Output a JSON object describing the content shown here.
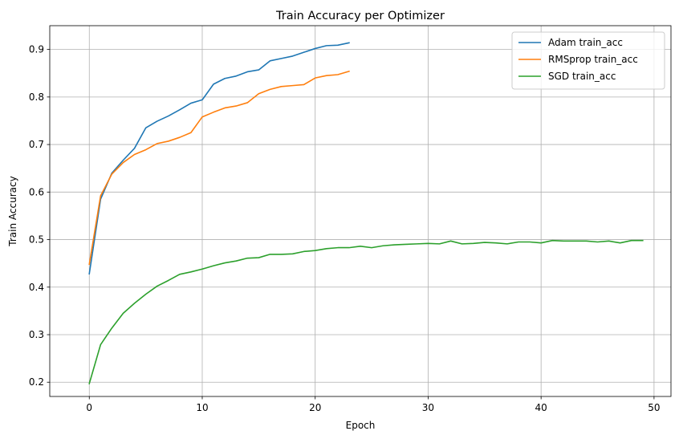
{
  "chart_data": {
    "type": "line",
    "title": "Train Accuracy per Optimizer",
    "xlabel": "Epoch",
    "ylabel": "Train Accuracy",
    "xlim": [
      -3.5,
      51.5
    ],
    "ylim": [
      0.17,
      0.95
    ],
    "xticks": [
      0,
      10,
      20,
      30,
      40,
      50
    ],
    "yticks": [
      0.2,
      0.3,
      0.4,
      0.5,
      0.6,
      0.7,
      0.8,
      0.9
    ],
    "grid": true,
    "legend_position": "top-right",
    "series": [
      {
        "name": "Adam train_acc",
        "color": "#1f77b4",
        "x": [
          0,
          1,
          2,
          3,
          4,
          5,
          6,
          7,
          8,
          9,
          10,
          11,
          12,
          13,
          14,
          15,
          16,
          17,
          18,
          19,
          20,
          21,
          22,
          23
        ],
        "values": [
          0.428,
          0.585,
          0.64,
          0.667,
          0.692,
          0.735,
          0.749,
          0.76,
          0.773,
          0.787,
          0.794,
          0.827,
          0.839,
          0.844,
          0.853,
          0.857,
          0.876,
          0.881,
          0.886,
          0.894,
          0.902,
          0.908,
          0.909,
          0.914
        ]
      },
      {
        "name": "RMSprop train_acc",
        "color": "#ff7f0e",
        "x": [
          0,
          1,
          2,
          3,
          4,
          5,
          6,
          7,
          8,
          9,
          10,
          11,
          12,
          13,
          14,
          15,
          16,
          17,
          18,
          19,
          20,
          21,
          22,
          23
        ],
        "values": [
          0.448,
          0.592,
          0.638,
          0.662,
          0.679,
          0.689,
          0.702,
          0.707,
          0.715,
          0.725,
          0.758,
          0.768,
          0.777,
          0.781,
          0.788,
          0.807,
          0.816,
          0.822,
          0.824,
          0.826,
          0.84,
          0.845,
          0.847,
          0.854
        ]
      },
      {
        "name": "SGD train_acc",
        "color": "#2ca02c",
        "x": [
          0,
          1,
          2,
          3,
          4,
          5,
          6,
          7,
          8,
          9,
          10,
          11,
          12,
          13,
          14,
          15,
          16,
          17,
          18,
          19,
          20,
          21,
          22,
          23,
          24,
          25,
          26,
          27,
          28,
          29,
          30,
          31,
          32,
          33,
          34,
          35,
          36,
          37,
          38,
          39,
          40,
          41,
          42,
          43,
          44,
          45,
          46,
          47,
          48,
          49
        ],
        "values": [
          0.197,
          0.279,
          0.314,
          0.345,
          0.366,
          0.385,
          0.402,
          0.414,
          0.427,
          0.432,
          0.438,
          0.445,
          0.451,
          0.455,
          0.461,
          0.462,
          0.469,
          0.469,
          0.47,
          0.475,
          0.477,
          0.481,
          0.483,
          0.483,
          0.486,
          0.483,
          0.487,
          0.489,
          0.49,
          0.491,
          0.492,
          0.491,
          0.497,
          0.491,
          0.492,
          0.494,
          0.493,
          0.491,
          0.495,
          0.495,
          0.493,
          0.498,
          0.497,
          0.497,
          0.497,
          0.495,
          0.497,
          0.493,
          0.498,
          0.498
        ]
      }
    ]
  }
}
